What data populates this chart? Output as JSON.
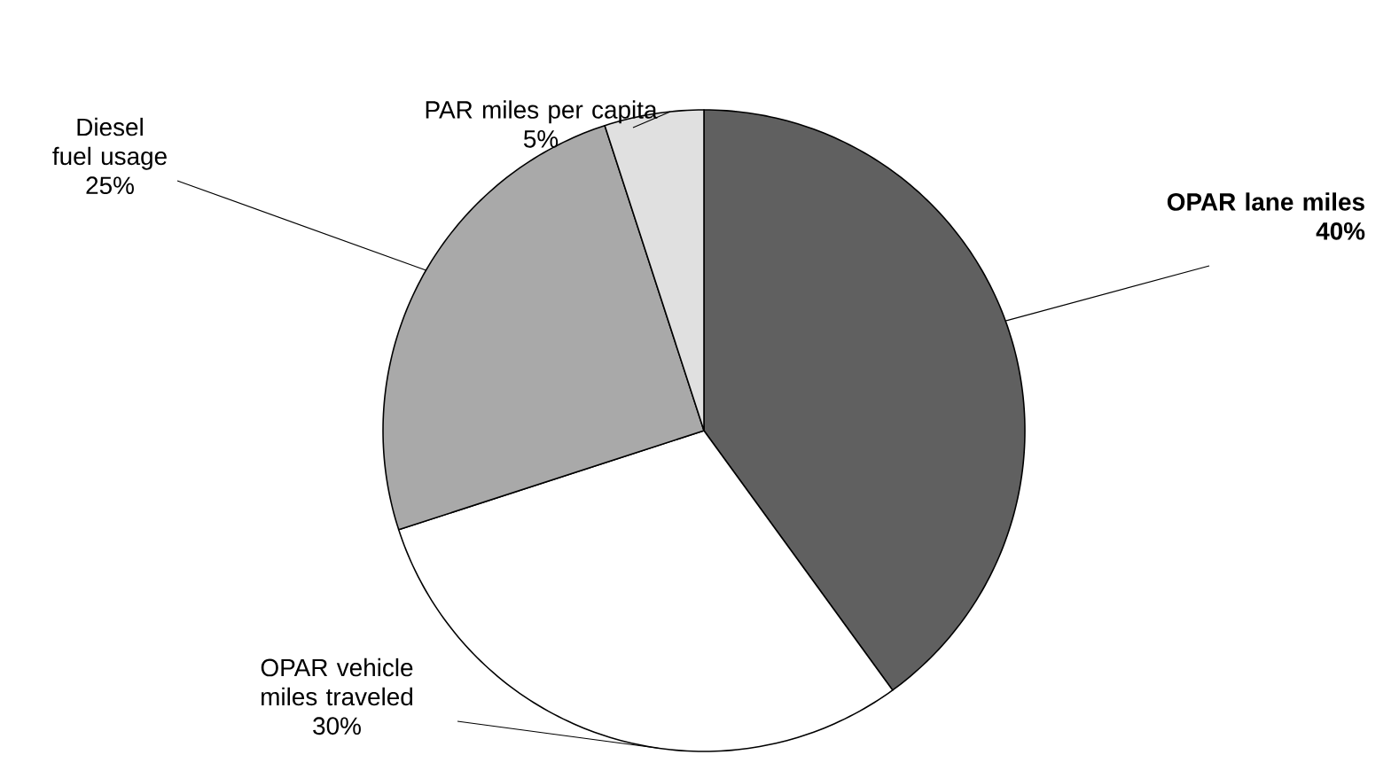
{
  "chart_data": {
    "type": "pie",
    "categories": [
      "**OPAR lane miles**",
      "OPAR vehicle miles traveled",
      "Diesel fuel usage",
      "PAR miles per capita"
    ],
    "values": [
      40,
      30,
      25,
      5
    ],
    "colors": [
      "#606060",
      "#ffffff",
      "#a9a9a9",
      "#e0e0e0"
    ],
    "value_labels": [
      "**40%**",
      "30%",
      "25%",
      "5%"
    ]
  }
}
